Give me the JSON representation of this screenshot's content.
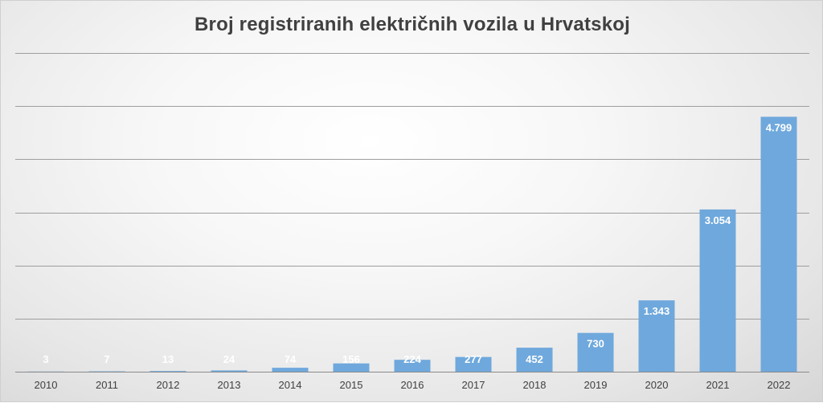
{
  "chart_data": {
    "type": "bar",
    "title": "Broj registriranih električnih vozila u Hrvatskoj",
    "xlabel": "",
    "ylabel": "",
    "categories": [
      "2010",
      "2011",
      "2012",
      "2013",
      "2014",
      "2015",
      "2016",
      "2017",
      "2018",
      "2019",
      "2020",
      "2021",
      "2022"
    ],
    "values": [
      3,
      7,
      13,
      24,
      74,
      156,
      224,
      277,
      452,
      730,
      1343,
      3054,
      4799
    ],
    "value_labels": [
      "3",
      "7",
      "13",
      "24",
      "74",
      "156",
      "224",
      "277",
      "452",
      "730",
      "1.343",
      "3.054",
      "4.799"
    ],
    "ylim": [
      0,
      6000
    ],
    "gridlines": [
      1000,
      2000,
      3000,
      4000,
      5000,
      6000
    ],
    "grid": true,
    "legend": "none",
    "bar_color": "#6fa8dc",
    "background": "#eeeeee"
  }
}
